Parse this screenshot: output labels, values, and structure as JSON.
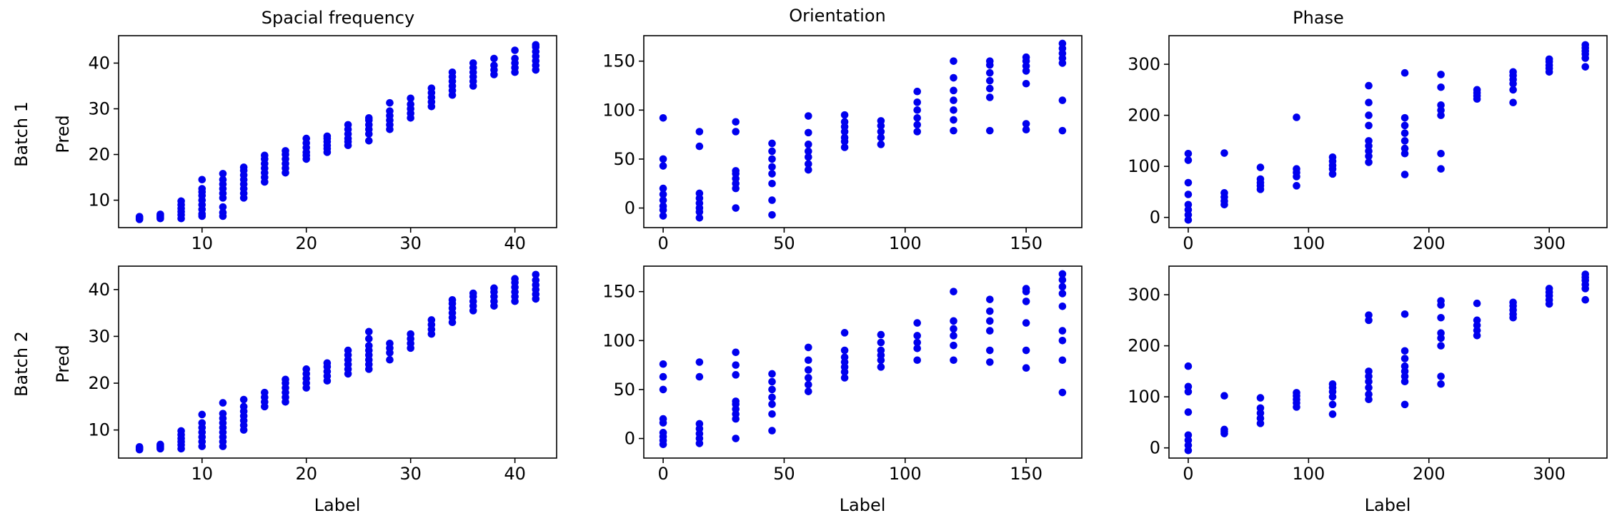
{
  "figure": {
    "column_titles": [
      "Spacial frequency",
      "Orientation",
      "Phase"
    ],
    "row_labels": [
      "Batch 1",
      "Batch 2"
    ],
    "ylabel": "Pred",
    "xlabel": "Label",
    "marker_color": "#0000ee"
  },
  "chart_data": [
    {
      "type": "scatter",
      "row": "Batch 1",
      "column": "Spacial frequency",
      "xlabel": "",
      "ylabel": "Pred",
      "xlim": [
        2,
        44
      ],
      "ylim": [
        4,
        46
      ],
      "xticks": [
        10,
        20,
        30,
        40
      ],
      "yticks": [
        10,
        20,
        30,
        40
      ],
      "groups": [
        {
          "x": 4,
          "y": [
            5.8,
            6.0,
            6.2,
            6.4
          ]
        },
        {
          "x": 6,
          "y": [
            6.0,
            6.3,
            6.6,
            6.9
          ]
        },
        {
          "x": 8,
          "y": [
            6.0,
            6.8,
            7.5,
            8.2,
            9.0,
            9.8
          ]
        },
        {
          "x": 10,
          "y": [
            6.5,
            7.0,
            8.0,
            9.0,
            10.0,
            11.0,
            11.8,
            12.5,
            14.5
          ]
        },
        {
          "x": 12,
          "y": [
            6.5,
            7.3,
            8.5,
            10.5,
            11.5,
            12.5,
            13.5,
            14.5,
            15.8
          ]
        },
        {
          "x": 14,
          "y": [
            10.5,
            11.5,
            12.5,
            13.5,
            14.5,
            15.5,
            16.5,
            17.2
          ]
        },
        {
          "x": 16,
          "y": [
            14.0,
            15.0,
            16.0,
            17.0,
            18.0,
            19.0,
            19.8
          ]
        },
        {
          "x": 18,
          "y": [
            16.0,
            17.0,
            18.0,
            19.0,
            20.0,
            20.8
          ]
        },
        {
          "x": 20,
          "y": [
            19.0,
            19.8,
            20.5,
            21.5,
            22.5,
            23.5
          ]
        },
        {
          "x": 22,
          "y": [
            20.5,
            21.3,
            22.0,
            22.8,
            23.5,
            24.0
          ]
        },
        {
          "x": 24,
          "y": [
            22.0,
            22.8,
            23.5,
            24.5,
            25.5,
            26.5
          ]
        },
        {
          "x": 26,
          "y": [
            23.0,
            24.5,
            25.5,
            26.5,
            27.5,
            28.0
          ]
        },
        {
          "x": 28,
          "y": [
            25.5,
            26.5,
            27.5,
            28.5,
            29.5,
            31.3
          ]
        },
        {
          "x": 30,
          "y": [
            28.0,
            29.0,
            30.0,
            31.0,
            32.3
          ]
        },
        {
          "x": 32,
          "y": [
            30.5,
            31.5,
            32.5,
            33.5,
            34.5
          ]
        },
        {
          "x": 34,
          "y": [
            33.0,
            34.0,
            35.0,
            36.0,
            37.0,
            38.0
          ]
        },
        {
          "x": 36,
          "y": [
            35.0,
            36.0,
            37.0,
            38.0,
            39.0,
            40.0
          ]
        },
        {
          "x": 38,
          "y": [
            37.5,
            38.5,
            39.5,
            41.0
          ]
        },
        {
          "x": 40,
          "y": [
            38.0,
            39.0,
            40.0,
            41.0,
            42.8
          ]
        },
        {
          "x": 42,
          "y": [
            38.5,
            39.5,
            40.5,
            41.5,
            42.5,
            43.5,
            44.0
          ]
        }
      ]
    },
    {
      "type": "scatter",
      "row": "Batch 1",
      "column": "Orientation",
      "xlabel": "",
      "ylabel": "",
      "xlim": [
        -8,
        173
      ],
      "ylim": [
        -20,
        176
      ],
      "xticks": [
        0,
        50,
        100,
        150
      ],
      "yticks": [
        0,
        50,
        100,
        150
      ],
      "groups": [
        {
          "x": 0,
          "y": [
            -8,
            -2,
            2,
            8,
            14,
            20,
            43,
            50,
            92
          ]
        },
        {
          "x": 15,
          "y": [
            -10,
            -4,
            0,
            5,
            10,
            15,
            63,
            78
          ]
        },
        {
          "x": 30,
          "y": [
            0,
            20,
            25,
            30,
            35,
            38,
            78,
            88
          ]
        },
        {
          "x": 45,
          "y": [
            -7,
            8,
            25,
            35,
            42,
            50,
            58,
            66
          ]
        },
        {
          "x": 60,
          "y": [
            39,
            45,
            52,
            58,
            65,
            77,
            94
          ]
        },
        {
          "x": 75,
          "y": [
            62,
            68,
            72,
            78,
            83,
            88,
            95
          ]
        },
        {
          "x": 90,
          "y": [
            65,
            72,
            78,
            84,
            89
          ]
        },
        {
          "x": 105,
          "y": [
            78,
            85,
            92,
            100,
            108,
            119
          ]
        },
        {
          "x": 120,
          "y": [
            79,
            90,
            100,
            110,
            120,
            133,
            150
          ]
        },
        {
          "x": 135,
          "y": [
            79,
            113,
            122,
            130,
            138,
            146,
            150
          ]
        },
        {
          "x": 150,
          "y": [
            80,
            86,
            127,
            140,
            145,
            150,
            154
          ]
        },
        {
          "x": 165,
          "y": [
            79,
            110,
            148,
            153,
            158,
            163,
            168
          ]
        }
      ]
    },
    {
      "type": "scatter",
      "row": "Batch 1",
      "column": "Phase",
      "xlabel": "",
      "ylabel": "",
      "xlim": [
        -16,
        348
      ],
      "ylim": [
        -20,
        356
      ],
      "xticks": [
        0,
        100,
        200,
        300
      ],
      "yticks": [
        0,
        100,
        200,
        300
      ],
      "groups": [
        {
          "x": 0,
          "y": [
            -5,
            5,
            15,
            25,
            45,
            68,
            112,
            125
          ]
        },
        {
          "x": 30,
          "y": [
            25,
            32,
            40,
            48,
            126
          ]
        },
        {
          "x": 60,
          "y": [
            55,
            62,
            68,
            75,
            98
          ]
        },
        {
          "x": 90,
          "y": [
            62,
            80,
            88,
            95,
            196
          ]
        },
        {
          "x": 120,
          "y": [
            85,
            95,
            102,
            110,
            118
          ]
        },
        {
          "x": 150,
          "y": [
            108,
            120,
            130,
            140,
            150,
            180,
            200,
            225,
            258
          ]
        },
        {
          "x": 180,
          "y": [
            84,
            125,
            135,
            150,
            165,
            180,
            195,
            283
          ]
        },
        {
          "x": 210,
          "y": [
            95,
            125,
            200,
            210,
            220,
            255,
            280
          ]
        },
        {
          "x": 240,
          "y": [
            232,
            238,
            244,
            250
          ]
        },
        {
          "x": 270,
          "y": [
            225,
            250,
            262,
            270,
            278,
            285
          ]
        },
        {
          "x": 300,
          "y": [
            285,
            292,
            298,
            305,
            310
          ]
        },
        {
          "x": 330,
          "y": [
            295,
            312,
            320,
            326,
            332,
            338
          ]
        }
      ]
    },
    {
      "type": "scatter",
      "row": "Batch 2",
      "column": "Spacial frequency",
      "xlabel": "Label",
      "ylabel": "Pred",
      "xlim": [
        2,
        44
      ],
      "ylim": [
        4,
        45
      ],
      "xticks": [
        10,
        20,
        30,
        40
      ],
      "yticks": [
        10,
        20,
        30,
        40
      ],
      "groups": [
        {
          "x": 4,
          "y": [
            5.8,
            6.0,
            6.2,
            6.4
          ]
        },
        {
          "x": 6,
          "y": [
            6.0,
            6.3,
            6.6,
            6.9
          ]
        },
        {
          "x": 8,
          "y": [
            6.0,
            6.8,
            7.5,
            8.2,
            9.0,
            9.8
          ]
        },
        {
          "x": 10,
          "y": [
            6.5,
            7.5,
            8.5,
            9.5,
            10.5,
            11.5,
            13.3
          ]
        },
        {
          "x": 12,
          "y": [
            6.5,
            7.5,
            8.5,
            9.5,
            10.5,
            11.5,
            12.5,
            13.5,
            15.8
          ]
        },
        {
          "x": 14,
          "y": [
            10.0,
            11.0,
            12.0,
            13.0,
            14.0,
            15.0,
            16.5
          ]
        },
        {
          "x": 16,
          "y": [
            15.0,
            16.0,
            17.0,
            18.0
          ]
        },
        {
          "x": 18,
          "y": [
            16.0,
            17.0,
            18.0,
            19.0,
            20.0,
            20.8
          ]
        },
        {
          "x": 20,
          "y": [
            19.0,
            20.0,
            21.0,
            22.0,
            23.0
          ]
        },
        {
          "x": 22,
          "y": [
            20.5,
            21.5,
            22.5,
            23.5,
            24.3
          ]
        },
        {
          "x": 24,
          "y": [
            22.0,
            23.0,
            24.0,
            25.0,
            26.0,
            27.0
          ]
        },
        {
          "x": 26,
          "y": [
            23.0,
            24.0,
            25.0,
            26.0,
            27.0,
            28.0,
            29.5,
            31.0
          ]
        },
        {
          "x": 28,
          "y": [
            25.0,
            26.5,
            27.5,
            28.5
          ]
        },
        {
          "x": 30,
          "y": [
            27.5,
            28.5,
            29.5,
            30.5
          ]
        },
        {
          "x": 32,
          "y": [
            30.5,
            31.5,
            32.5,
            33.5
          ]
        },
        {
          "x": 34,
          "y": [
            33.0,
            34.0,
            35.0,
            36.0,
            37.0,
            37.8
          ]
        },
        {
          "x": 36,
          "y": [
            35.5,
            36.5,
            37.5,
            38.5,
            39.2
          ]
        },
        {
          "x": 38,
          "y": [
            36.5,
            37.5,
            38.5,
            39.5,
            40.3
          ]
        },
        {
          "x": 40,
          "y": [
            37.5,
            38.5,
            39.5,
            40.5,
            41.5,
            42.3
          ]
        },
        {
          "x": 42,
          "y": [
            38.0,
            39.0,
            40.0,
            41.0,
            42.0,
            43.2
          ]
        }
      ]
    },
    {
      "type": "scatter",
      "row": "Batch 2",
      "column": "Orientation",
      "xlabel": "Label",
      "ylabel": "",
      "xlim": [
        -8,
        173
      ],
      "ylim": [
        -20,
        176
      ],
      "xticks": [
        0,
        50,
        100,
        150
      ],
      "yticks": [
        0,
        50,
        100,
        150
      ],
      "groups": [
        {
          "x": 0,
          "y": [
            -6,
            -2,
            2,
            6,
            16,
            20,
            50,
            63,
            76
          ]
        },
        {
          "x": 15,
          "y": [
            -5,
            0,
            5,
            10,
            15,
            63,
            78
          ]
        },
        {
          "x": 30,
          "y": [
            0,
            20,
            25,
            30,
            35,
            38,
            65,
            75,
            88
          ]
        },
        {
          "x": 45,
          "y": [
            8,
            25,
            35,
            42,
            50,
            58,
            66
          ]
        },
        {
          "x": 60,
          "y": [
            48,
            55,
            62,
            70,
            80,
            93
          ]
        },
        {
          "x": 75,
          "y": [
            62,
            68,
            73,
            78,
            83,
            90,
            108
          ]
        },
        {
          "x": 90,
          "y": [
            73,
            80,
            85,
            90,
            98,
            106
          ]
        },
        {
          "x": 105,
          "y": [
            80,
            92,
            98,
            105,
            118
          ]
        },
        {
          "x": 120,
          "y": [
            80,
            95,
            105,
            112,
            120,
            150
          ]
        },
        {
          "x": 135,
          "y": [
            78,
            90,
            110,
            120,
            130,
            142
          ]
        },
        {
          "x": 150,
          "y": [
            72,
            90,
            118,
            140,
            150,
            153
          ]
        },
        {
          "x": 165,
          "y": [
            47,
            80,
            100,
            110,
            135,
            148,
            155,
            162,
            168
          ]
        }
      ]
    },
    {
      "type": "scatter",
      "row": "Batch 2",
      "column": "Phase",
      "xlabel": "Label",
      "ylabel": "",
      "xlim": [
        -16,
        348
      ],
      "ylim": [
        -20,
        356
      ],
      "xticks": [
        0,
        100,
        200,
        300
      ],
      "yticks": [
        0,
        100,
        200,
        300
      ],
      "groups": [
        {
          "x": 0,
          "y": [
            -5,
            5,
            15,
            25,
            70,
            110,
            120,
            160
          ]
        },
        {
          "x": 30,
          "y": [
            28,
            32,
            36,
            102
          ]
        },
        {
          "x": 60,
          "y": [
            48,
            58,
            68,
            78,
            98
          ]
        },
        {
          "x": 90,
          "y": [
            80,
            88,
            95,
            102,
            108
          ]
        },
        {
          "x": 120,
          "y": [
            66,
            85,
            100,
            110,
            118,
            125
          ]
        },
        {
          "x": 150,
          "y": [
            95,
            105,
            118,
            130,
            140,
            150,
            250,
            260
          ]
        },
        {
          "x": 180,
          "y": [
            85,
            130,
            140,
            150,
            160,
            175,
            190,
            262
          ]
        },
        {
          "x": 210,
          "y": [
            125,
            140,
            200,
            215,
            225,
            255,
            280,
            288
          ]
        },
        {
          "x": 240,
          "y": [
            220,
            230,
            240,
            250,
            283
          ]
        },
        {
          "x": 270,
          "y": [
            255,
            262,
            270,
            278,
            285
          ]
        },
        {
          "x": 300,
          "y": [
            282,
            290,
            298,
            305,
            312
          ]
        },
        {
          "x": 330,
          "y": [
            290,
            312,
            320,
            328,
            334,
            340
          ]
        }
      ]
    }
  ]
}
